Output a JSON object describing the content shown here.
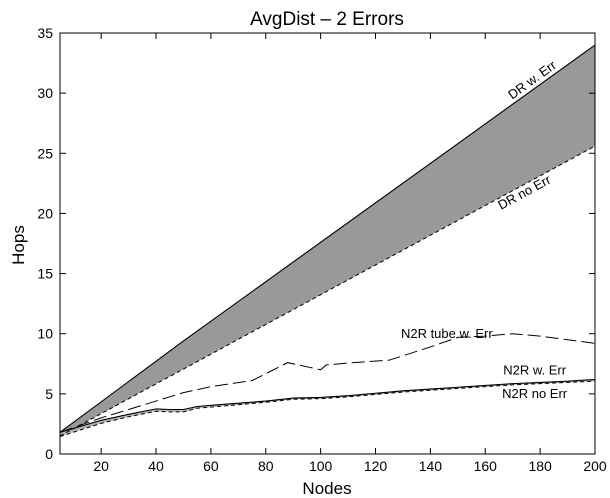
{
  "chart_data": {
    "type": "line",
    "title": "AvgDist – 2 Errors",
    "xlabel": "Nodes",
    "ylabel": "Hops",
    "xlim": [
      5,
      200
    ],
    "ylim": [
      0,
      35
    ],
    "xticks": [
      20,
      40,
      60,
      80,
      100,
      120,
      140,
      160,
      180,
      200
    ],
    "yticks": [
      0,
      5,
      10,
      15,
      20,
      25,
      30,
      35
    ],
    "grid": false,
    "legend": "none",
    "colors": {
      "band_fill": "#999999",
      "n2r_band_fill": "#b4b4b4",
      "line": "#000000"
    },
    "series": [
      {
        "name": "DR w. Err",
        "style": "solid",
        "x": [
          5,
          50,
          200
        ],
        "y": [
          1.8,
          9.4,
          34.0
        ]
      },
      {
        "name": "DR no Err",
        "style": "dashed",
        "x": [
          5,
          200
        ],
        "y": [
          1.5,
          25.6
        ]
      },
      {
        "name": "N2R tube w. Err",
        "style": "longdash",
        "x": [
          5,
          20,
          30,
          40,
          50,
          60,
          75,
          88,
          100,
          102,
          112,
          125,
          140,
          150,
          160,
          170,
          180,
          190,
          200
        ],
        "y": [
          1.8,
          3.0,
          3.7,
          4.4,
          5.1,
          5.6,
          6.1,
          7.6,
          7.0,
          7.4,
          7.6,
          7.8,
          8.9,
          9.7,
          9.8,
          10.0,
          9.8,
          9.5,
          9.2
        ]
      },
      {
        "name": "N2R w. Err",
        "style": "solid",
        "x": [
          5,
          20,
          30,
          40,
          45,
          50,
          55,
          60,
          80,
          90,
          100,
          110,
          120,
          130,
          140,
          150,
          160,
          170,
          180,
          190,
          200
        ],
        "y": [
          1.8,
          2.8,
          3.3,
          3.75,
          3.7,
          3.7,
          3.95,
          4.05,
          4.4,
          4.65,
          4.7,
          4.85,
          5.05,
          5.25,
          5.4,
          5.55,
          5.7,
          5.85,
          5.95,
          6.05,
          6.2
        ]
      },
      {
        "name": "N2R no Err",
        "style": "dashed",
        "x": [
          5,
          20,
          30,
          40,
          45,
          50,
          55,
          60,
          80,
          90,
          100,
          110,
          120,
          130,
          140,
          150,
          160,
          170,
          180,
          190,
          200
        ],
        "y": [
          1.45,
          2.55,
          3.1,
          3.55,
          3.5,
          3.5,
          3.8,
          3.9,
          4.3,
          4.55,
          4.6,
          4.75,
          4.95,
          5.15,
          5.3,
          5.45,
          5.6,
          5.75,
          5.85,
          5.95,
          6.05
        ]
      }
    ],
    "annotations": [
      {
        "text": "DR w. Err",
        "series": "DR w. Err"
      },
      {
        "text": "DR no Err",
        "series": "DR no Err"
      },
      {
        "text": "N2R tube w. Err",
        "series": "N2R tube w. Err"
      },
      {
        "text": "N2R w. Err",
        "series": "N2R w. Err"
      },
      {
        "text": "N2R no Err",
        "series": "N2R no Err"
      }
    ]
  }
}
